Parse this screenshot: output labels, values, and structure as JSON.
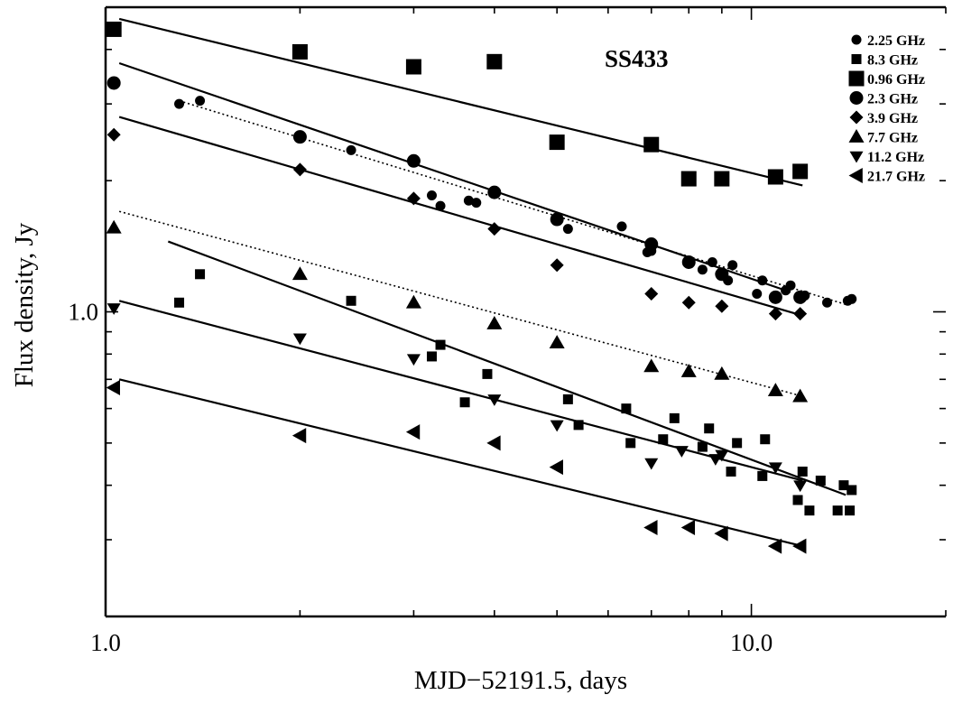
{
  "chart_data": {
    "type": "scatter",
    "title": "SS433",
    "xlabel": "MJD−52191.5, days",
    "ylabel": "Flux density,  Jy",
    "xscale": "log",
    "yscale": "log",
    "xlim": [
      1.0,
      20.0
    ],
    "ylim": [
      0.2,
      5.0
    ],
    "x_ticks": [
      {
        "value": 1.0,
        "label": "1.0"
      },
      {
        "value": 10.0,
        "label": "10.0"
      }
    ],
    "y_ticks": [
      {
        "value": 1.0,
        "label": "1.0"
      }
    ],
    "grid": false,
    "legend_position": "top-right",
    "series": [
      {
        "name": "2.25 GHz",
        "marker": "circle-small",
        "x": [
          1.3,
          1.4,
          2.0,
          2.4,
          3.2,
          3.3,
          3.65,
          3.75,
          5.2,
          6.3,
          6.9,
          7.0,
          8.4,
          8.7,
          9.2,
          9.35,
          10.2,
          10.4,
          11.3,
          11.5,
          12.1,
          13.1,
          14.1,
          14.3
        ],
        "y": [
          3.0,
          3.05,
          2.5,
          2.35,
          1.85,
          1.75,
          1.8,
          1.78,
          1.55,
          1.57,
          1.37,
          1.38,
          1.25,
          1.3,
          1.18,
          1.28,
          1.1,
          1.18,
          1.12,
          1.15,
          1.09,
          1.05,
          1.06,
          1.07
        ]
      },
      {
        "name": "8.3 GHz",
        "marker": "square-small",
        "x": [
          1.3,
          1.4,
          2.4,
          3.2,
          3.3,
          3.6,
          3.9,
          5.2,
          5.4,
          6.4,
          6.5,
          7.3,
          7.6,
          8.4,
          8.6,
          9.3,
          9.5,
          10.4,
          10.5,
          11.8,
          12.0,
          12.3,
          12.8,
          13.6,
          13.9,
          14.2,
          14.3
        ],
        "y": [
          1.05,
          1.22,
          1.06,
          0.79,
          0.84,
          0.62,
          0.72,
          0.63,
          0.55,
          0.6,
          0.5,
          0.51,
          0.57,
          0.49,
          0.54,
          0.43,
          0.5,
          0.42,
          0.51,
          0.37,
          0.43,
          0.35,
          0.41,
          0.35,
          0.4,
          0.35,
          0.39
        ]
      },
      {
        "name": "0.96 GHz",
        "marker": "square-large",
        "x": [
          1.03,
          2.0,
          3.0,
          4.0,
          5.0,
          7.0,
          8.0,
          9.0,
          10.9,
          11.9
        ],
        "y": [
          4.45,
          3.95,
          3.65,
          3.75,
          2.45,
          2.42,
          2.02,
          2.02,
          2.04,
          2.1
        ]
      },
      {
        "name": "2.3 GHz",
        "marker": "circle-large",
        "x": [
          1.03,
          2.0,
          3.0,
          4.0,
          5.0,
          7.0,
          8.0,
          9.0,
          10.9,
          11.9
        ],
        "y": [
          3.35,
          2.52,
          2.22,
          1.88,
          1.63,
          1.43,
          1.3,
          1.22,
          1.08,
          1.08
        ]
      },
      {
        "name": "3.9 GHz",
        "marker": "diamond",
        "x": [
          1.03,
          2.0,
          3.0,
          4.0,
          5.0,
          7.0,
          8.0,
          9.0,
          10.9,
          11.9
        ],
        "y": [
          2.55,
          2.12,
          1.82,
          1.55,
          1.28,
          1.1,
          1.05,
          1.03,
          0.99,
          0.99
        ]
      },
      {
        "name": "7.7 GHz",
        "marker": "triangle-up",
        "x": [
          1.03,
          2.0,
          3.0,
          4.0,
          5.0,
          7.0,
          8.0,
          9.0,
          10.9,
          11.9
        ],
        "y": [
          1.56,
          1.22,
          1.05,
          0.94,
          0.85,
          0.75,
          0.73,
          0.72,
          0.66,
          0.64
        ]
      },
      {
        "name": "11.2 GHz",
        "marker": "triangle-down",
        "x": [
          1.03,
          2.0,
          3.0,
          4.0,
          5.0,
          7.0,
          7.8,
          8.8,
          9.0,
          10.9,
          11.9
        ],
        "y": [
          1.02,
          0.87,
          0.78,
          0.63,
          0.55,
          0.45,
          0.48,
          0.46,
          0.47,
          0.44,
          0.4
        ]
      },
      {
        "name": "21.7 GHz",
        "marker": "triangle-left",
        "x": [
          1.03,
          2.0,
          3.0,
          4.0,
          5.0,
          7.0,
          8.0,
          9.0,
          10.9,
          11.9
        ],
        "y": [
          0.67,
          0.52,
          0.53,
          0.5,
          0.44,
          0.32,
          0.32,
          0.31,
          0.29,
          0.29
        ]
      }
    ],
    "fit_lines": [
      {
        "style": "solid",
        "x": [
          1.05,
          12.0
        ],
        "y": [
          4.7,
          1.95
        ]
      },
      {
        "style": "solid",
        "x": [
          1.05,
          11.5
        ],
        "y": [
          3.72,
          1.11
        ]
      },
      {
        "style": "dotted",
        "x": [
          1.3,
          14.0
        ],
        "y": [
          3.05,
          1.04
        ]
      },
      {
        "style": "solid",
        "x": [
          1.05,
          12.0
        ],
        "y": [
          2.8,
          0.98
        ]
      },
      {
        "style": "dotted",
        "x": [
          1.05,
          12.0
        ],
        "y": [
          1.7,
          0.64
        ]
      },
      {
        "style": "solid",
        "x": [
          1.25,
          14.0
        ],
        "y": [
          1.45,
          0.38
        ]
      },
      {
        "style": "solid",
        "x": [
          1.05,
          12.0
        ],
        "y": [
          1.06,
          0.41
        ]
      },
      {
        "style": "solid",
        "x": [
          1.05,
          12.0
        ],
        "y": [
          0.7,
          0.29
        ]
      }
    ]
  }
}
